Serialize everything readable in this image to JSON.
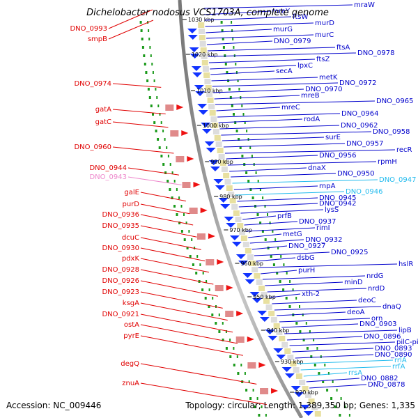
{
  "title": "Dichelobacter nodosus VCS1703A, complete genome",
  "footer": {
    "accession": "Accession: NC_009446",
    "summary": "Topology: circular; Length: 1,389,350 bp; Genes: 1,335"
  },
  "colors": {
    "left_labels": "#e00000",
    "right_labels": "#0000cc",
    "rna_labels": "#22bbee",
    "pseudo_labels": "#ee88cc",
    "axis": "#888888"
  },
  "ticks": [
    "1030 kbp",
    "1020 kbp",
    "1010 kbp",
    "1000 kbp",
    "990 kbp",
    "980 kbp",
    "970 kbp",
    "960 kbp",
    "950 kbp",
    "940 kbp",
    "930 kbp",
    "920 kbp"
  ],
  "left_labels": [
    "DNO_0993",
    "smpB",
    "DNO_0974",
    "gatA",
    "gatC",
    "DNO_0960",
    "DNO_0944",
    "DNO_0943",
    "galE",
    "purD",
    "DNO_0936",
    "DNO_0935",
    "dcuC",
    "DNO_0930",
    "pdxK",
    "DNO_0928",
    "DNO_0926",
    "DNO_0923",
    "ksgA",
    "DNO_0921",
    "ostA",
    "pyrE",
    "degQ",
    "znuA"
  ],
  "right_labels": [
    "mraW",
    "mraY",
    "ftsW",
    "murD",
    "murG",
    "murC",
    "DNO_0979",
    "ftsA",
    "DNO_0978",
    "ftsZ",
    "lpxC",
    "secA",
    "metK",
    "DNO_0972",
    "DNO_0970",
    "mreB",
    "DNO_0965",
    "mreC",
    "DNO_0964",
    "rodA",
    "DNO_0962",
    "DNO_0958",
    "surE",
    "DNO_0957",
    "recR",
    "DNO_0956",
    "rpmH",
    "dnaX",
    "DNO_0950",
    "DNO_0947",
    "rnpA",
    "DNO_0946",
    "DNO_0945",
    "DNO_0942",
    "lysS",
    "prfB",
    "DNO_0937",
    "rimI",
    "metG",
    "DNO_0932",
    "DNO_0927",
    "DNO_0925",
    "dsbG",
    "hslR",
    "purH",
    "nrdG",
    "minD",
    "nrdD",
    "xth-2",
    "deoC",
    "dnaQ",
    "deoA",
    "orn",
    "DNO_0903",
    "lipB",
    "DNO_0896",
    "pilC-pilV",
    "DNO_0893",
    "DNO_0890",
    "rrlA",
    "rrfA",
    "rrsA",
    "DNO_0882",
    "DNO_0878"
  ]
}
